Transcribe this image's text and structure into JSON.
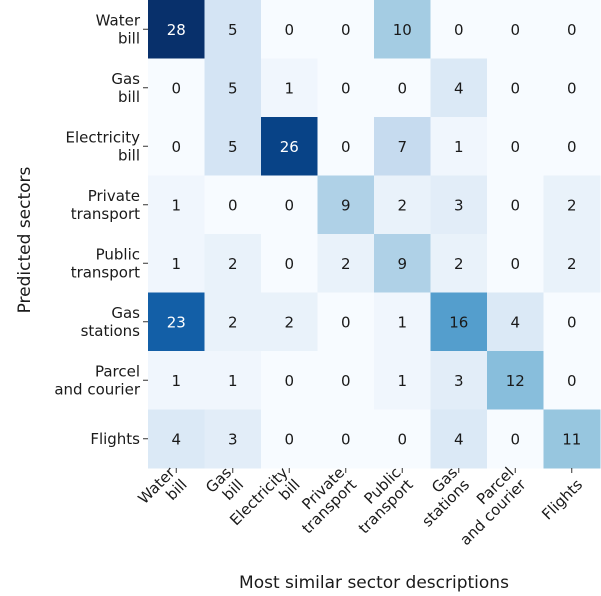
{
  "chart_data": {
    "type": "heatmap",
    "x_label": "Most similar sector descriptions",
    "y_label": "Predicted sectors",
    "x_categories": [
      [
        "Water",
        "bill"
      ],
      [
        "Gas",
        "bill"
      ],
      [
        "Electricity",
        "bill"
      ],
      [
        "Private",
        "transport"
      ],
      [
        "Public",
        "transport"
      ],
      [
        "Gas",
        "stations"
      ],
      [
        "Parcel",
        "and courier"
      ],
      [
        "Flights"
      ]
    ],
    "y_categories": [
      [
        "Water",
        "bill"
      ],
      [
        "Gas",
        "bill"
      ],
      [
        "Electricity",
        "bill"
      ],
      [
        "Private",
        "transport"
      ],
      [
        "Public",
        "transport"
      ],
      [
        "Gas",
        "stations"
      ],
      [
        "Parcel",
        "and courier"
      ],
      [
        "Flights"
      ]
    ],
    "values": [
      [
        28,
        5,
        0,
        0,
        10,
        0,
        0,
        0
      ],
      [
        0,
        5,
        1,
        0,
        0,
        4,
        0,
        0
      ],
      [
        0,
        5,
        26,
        0,
        7,
        1,
        0,
        0
      ],
      [
        1,
        0,
        0,
        9,
        2,
        3,
        0,
        2
      ],
      [
        1,
        2,
        0,
        2,
        9,
        2,
        0,
        2
      ],
      [
        23,
        2,
        2,
        0,
        1,
        16,
        4,
        0
      ],
      [
        1,
        1,
        0,
        0,
        1,
        3,
        12,
        0
      ],
      [
        4,
        3,
        0,
        0,
        0,
        4,
        0,
        11
      ]
    ],
    "vlim": [
      0,
      28
    ],
    "colormap": [
      "#f7fbff",
      "#deebf7",
      "#c6dbef",
      "#9ecae1",
      "#6baed6",
      "#4292c6",
      "#2171b5",
      "#08519c",
      "#08306b"
    ]
  }
}
